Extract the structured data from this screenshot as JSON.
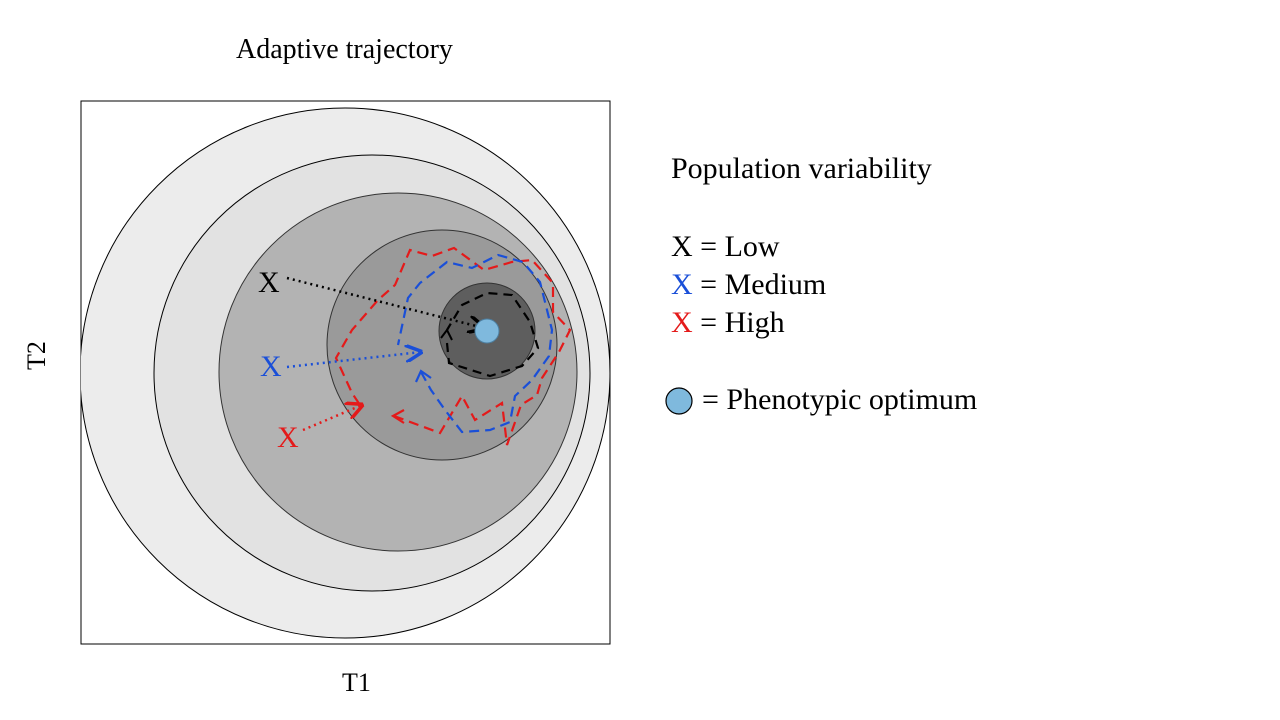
{
  "title": "Adaptive trajectory",
  "xlabel": "T1",
  "ylabel": "T2",
  "legend": {
    "title": "Population variability",
    "items": [
      {
        "symbol": "X",
        "label": "= Low",
        "color": "#000000"
      },
      {
        "symbol": "X",
        "label": "= Medium",
        "color": "#1a4fd8"
      },
      {
        "symbol": "X",
        "label": "= High",
        "color": "#e41a1a"
      }
    ],
    "optimum_label": "= Phenotypic optimum"
  },
  "markers": [
    {
      "text": "X",
      "color": "#000000"
    },
    {
      "text": "X",
      "color": "#1a4fd8"
    },
    {
      "text": "X",
      "color": "#e41a1a"
    }
  ],
  "colors": {
    "ring1": "#ececec",
    "ring2": "#e2e2e2",
    "ring3": "#b3b3b3",
    "ring4": "#9a9a9a",
    "ring5": "#5e5e5e",
    "optimum": "#7fb9dd",
    "low": "#000000",
    "medium": "#1a4fd8",
    "high": "#e41a1a"
  }
}
